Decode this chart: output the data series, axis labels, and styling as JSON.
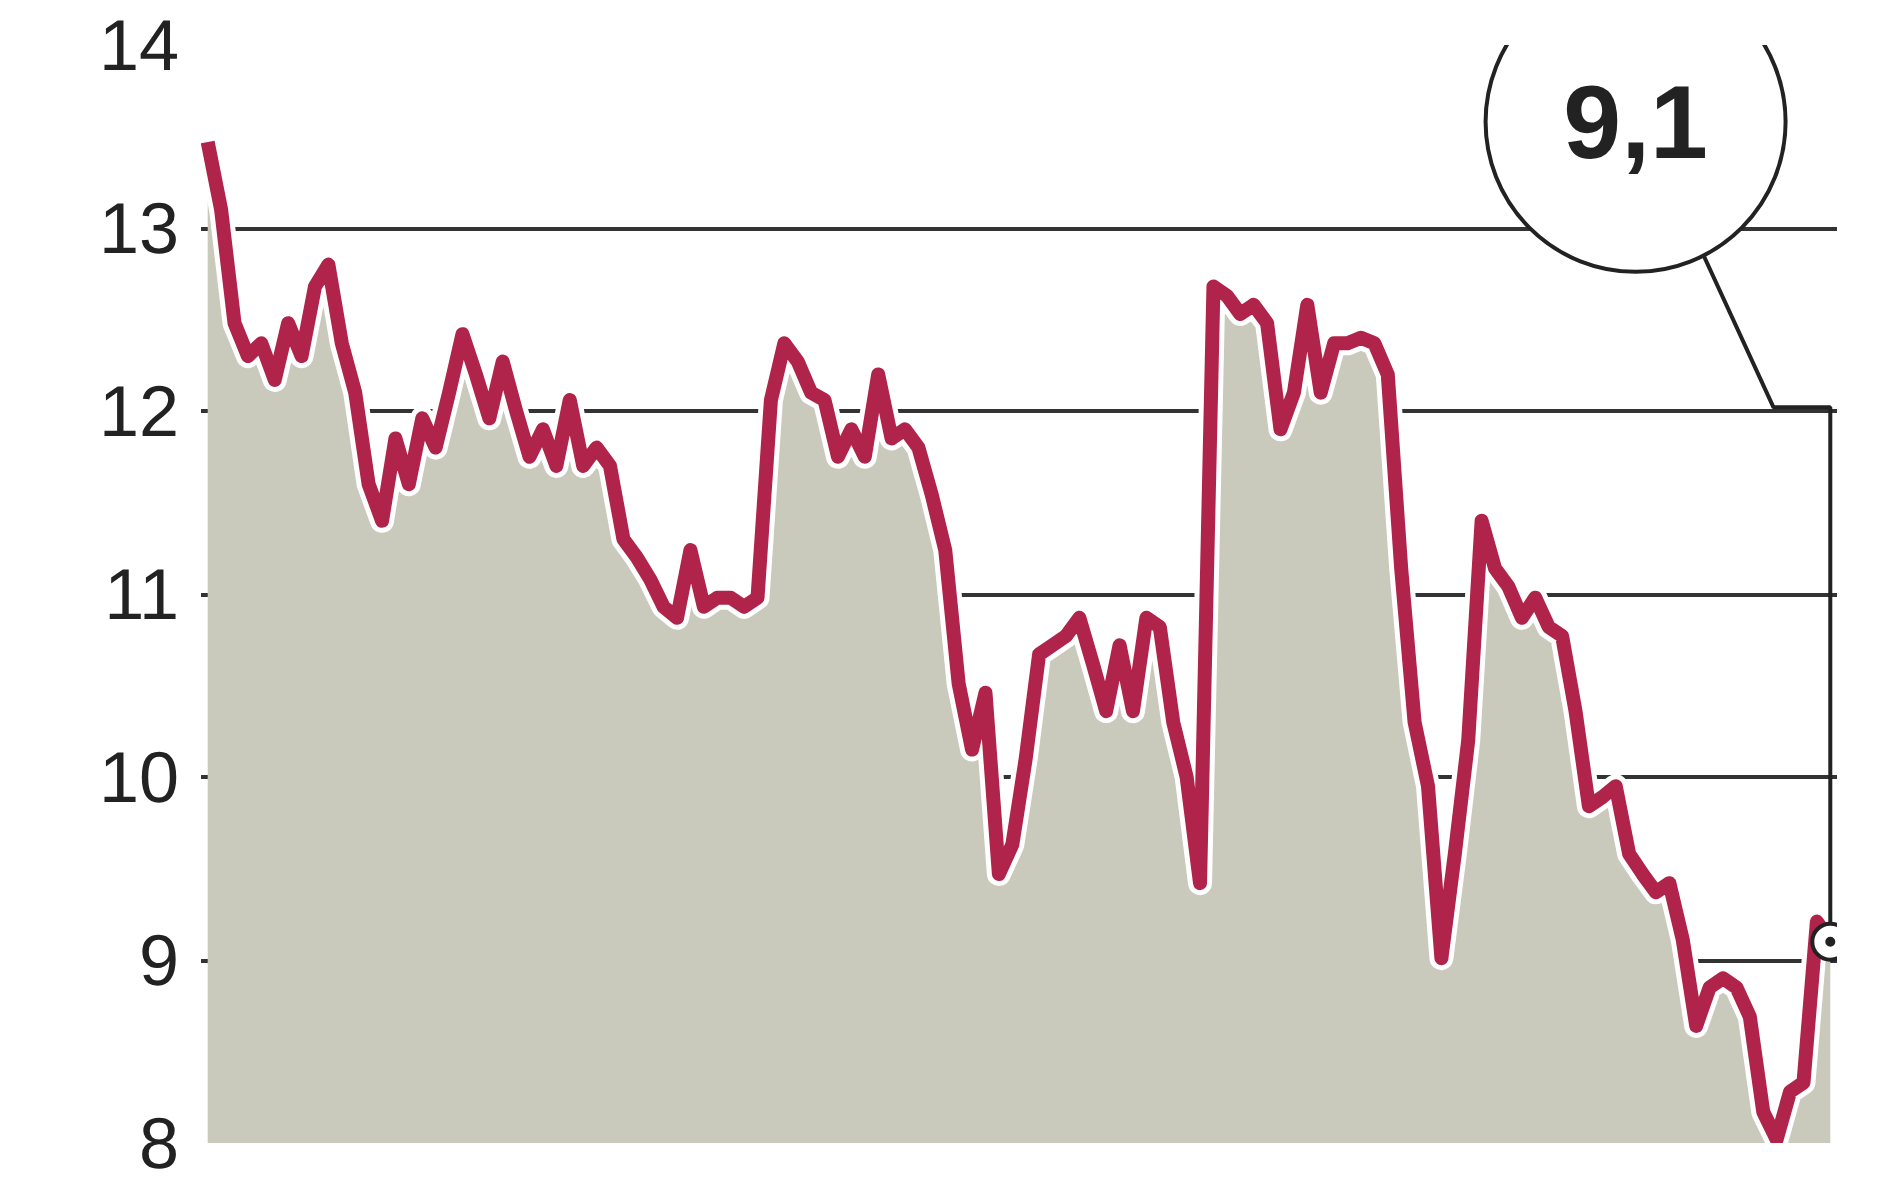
{
  "chart_data": {
    "type": "area",
    "ylim": [
      8,
      14
    ],
    "yticks": [
      8,
      9,
      10,
      11,
      12,
      13,
      14
    ],
    "grid": "y",
    "tick_labels": "y",
    "categories": [
      null,
      null,
      null,
      null,
      null,
      null,
      null,
      null,
      null,
      null,
      null,
      null,
      null,
      null,
      null,
      null,
      null,
      null,
      null,
      null,
      null,
      null,
      null,
      null,
      null,
      null,
      null,
      null,
      null,
      null,
      null,
      null,
      null,
      null,
      null,
      null,
      null,
      null,
      null,
      null,
      null,
      null,
      null,
      null,
      null,
      null,
      null,
      null,
      null,
      null,
      null,
      null,
      null,
      null,
      null,
      null,
      null,
      null,
      null,
      null,
      null,
      null,
      null,
      null,
      null,
      null,
      null,
      null,
      null,
      null,
      null,
      null,
      null,
      null,
      null,
      null,
      null,
      null,
      null,
      null,
      null,
      null,
      null,
      null,
      null,
      null,
      null,
      null,
      null,
      null,
      null,
      null,
      null,
      null,
      null,
      null,
      null,
      null,
      null,
      null,
      null,
      null,
      null,
      null,
      null,
      null,
      null,
      null,
      null,
      null,
      null,
      null,
      null,
      null,
      null,
      null,
      null,
      null,
      null,
      null,
      null,
      null
    ],
    "series": [
      {
        "color": "#b0234a",
        "values": [
          13.47,
          13.1,
          12.48,
          12.3,
          12.37,
          12.17,
          12.48,
          12.3,
          12.68,
          12.8,
          12.37,
          12.1,
          11.6,
          11.4,
          11.85,
          11.6,
          11.96,
          11.8,
          12.1,
          12.42,
          12.2,
          11.96,
          12.27,
          12.0,
          11.75,
          11.9,
          11.7,
          12.06,
          11.7,
          11.8,
          11.7,
          11.3,
          11.2,
          11.08,
          10.93,
          10.87,
          11.24,
          10.93,
          10.98,
          10.98,
          10.93,
          10.98,
          12.06,
          12.37,
          12.27,
          12.1,
          12.06,
          11.75,
          11.9,
          11.75,
          12.2,
          11.85,
          11.9,
          11.8,
          11.54,
          11.24,
          10.51,
          10.15,
          10.46,
          9.47,
          9.63,
          10.1,
          10.67,
          10.72,
          10.77,
          10.87,
          10.62,
          10.36,
          10.72,
          10.36,
          10.87,
          10.82,
          10.3,
          10.0,
          9.42,
          12.68,
          12.63,
          12.53,
          12.58,
          12.48,
          11.9,
          12.1,
          12.58,
          12.1,
          12.37,
          12.37,
          12.4,
          12.37,
          12.2,
          11.14,
          10.3,
          9.95,
          9.01,
          9.58,
          10.2,
          11.4,
          11.14,
          11.04,
          10.87,
          10.98,
          10.82,
          10.77,
          10.36,
          9.84,
          9.89,
          9.95,
          9.58,
          9.47,
          9.37,
          9.42,
          9.11,
          8.64,
          8.85,
          8.9,
          8.85,
          8.69,
          8.17,
          8.02,
          8.28,
          8.33,
          9.21,
          9.1
        ]
      }
    ],
    "annotations": [
      "9,1"
    ]
  }
}
